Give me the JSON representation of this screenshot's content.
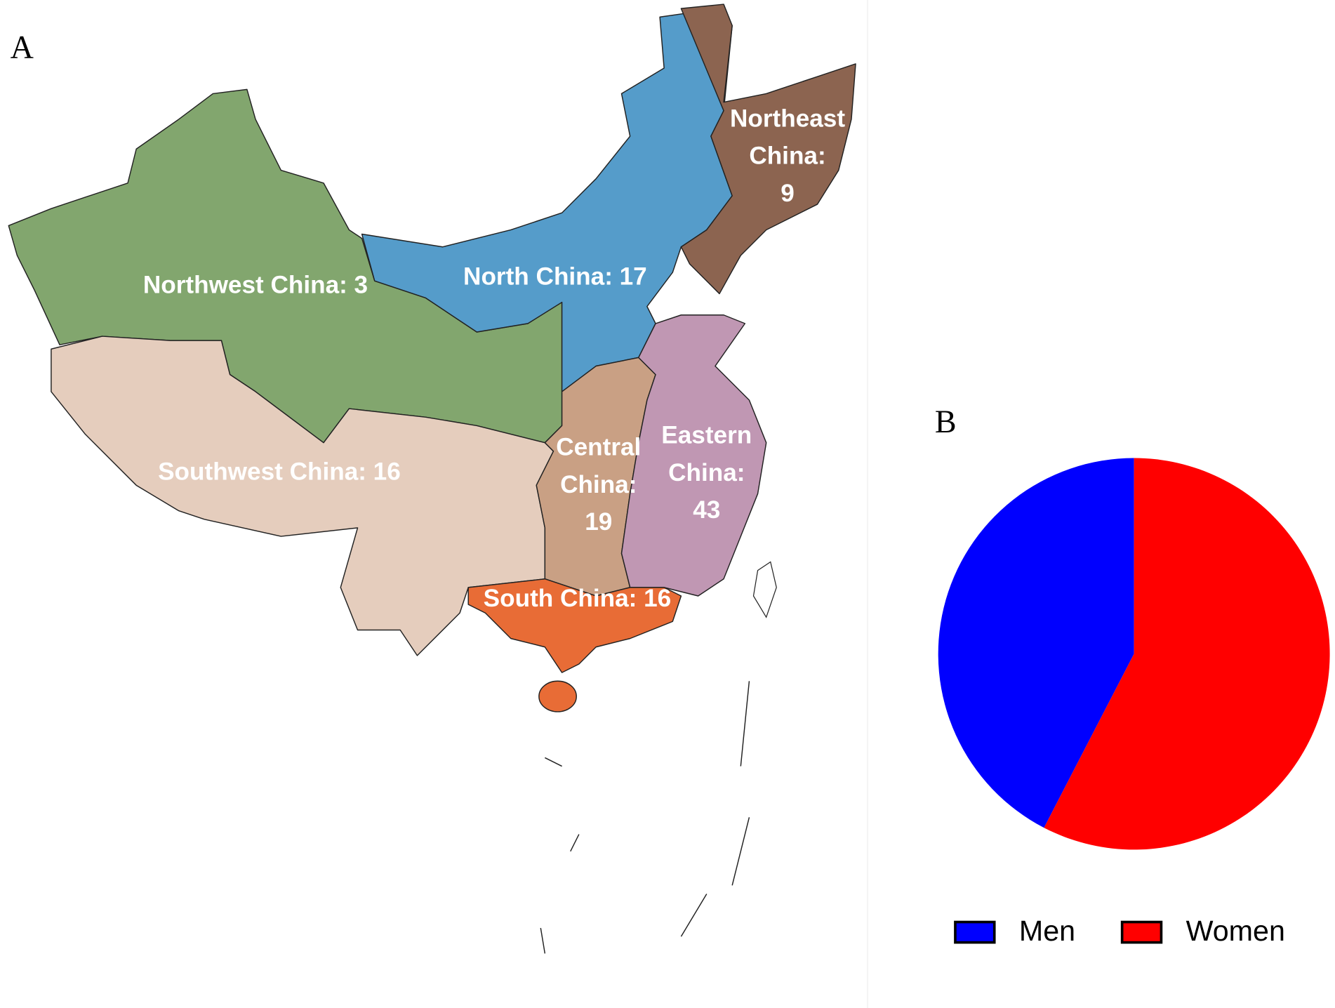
{
  "panels": {
    "a": "A",
    "b": "B"
  },
  "map": {
    "regions": [
      {
        "lines": [
          "Northwest China:"
        ],
        "count": 3,
        "color": "#82a66e"
      },
      {
        "lines": [
          "North China:"
        ],
        "count": 17,
        "color": "#559cca"
      },
      {
        "lines": [
          "Northeast",
          "China:"
        ],
        "count": 9,
        "color": "#8c6450"
      },
      {
        "lines": [
          "Southwest China:"
        ],
        "count": 16,
        "color": "#e5cdbd"
      },
      {
        "lines": [
          "Central",
          "China:"
        ],
        "count": 19,
        "color": "#c9a084"
      },
      {
        "lines": [
          "Eastern",
          "China:"
        ],
        "count": 43,
        "color": "#c097b3"
      },
      {
        "lines": [
          "South China:"
        ],
        "count": 16,
        "color": "#e86c36"
      }
    ]
  },
  "chart_data": {
    "type": "pie",
    "series": [
      {
        "name": "Men",
        "color": "#0000ff",
        "value": 42.4
      },
      {
        "name": "Women",
        "color": "#ff0000",
        "value": 57.6
      }
    ]
  }
}
